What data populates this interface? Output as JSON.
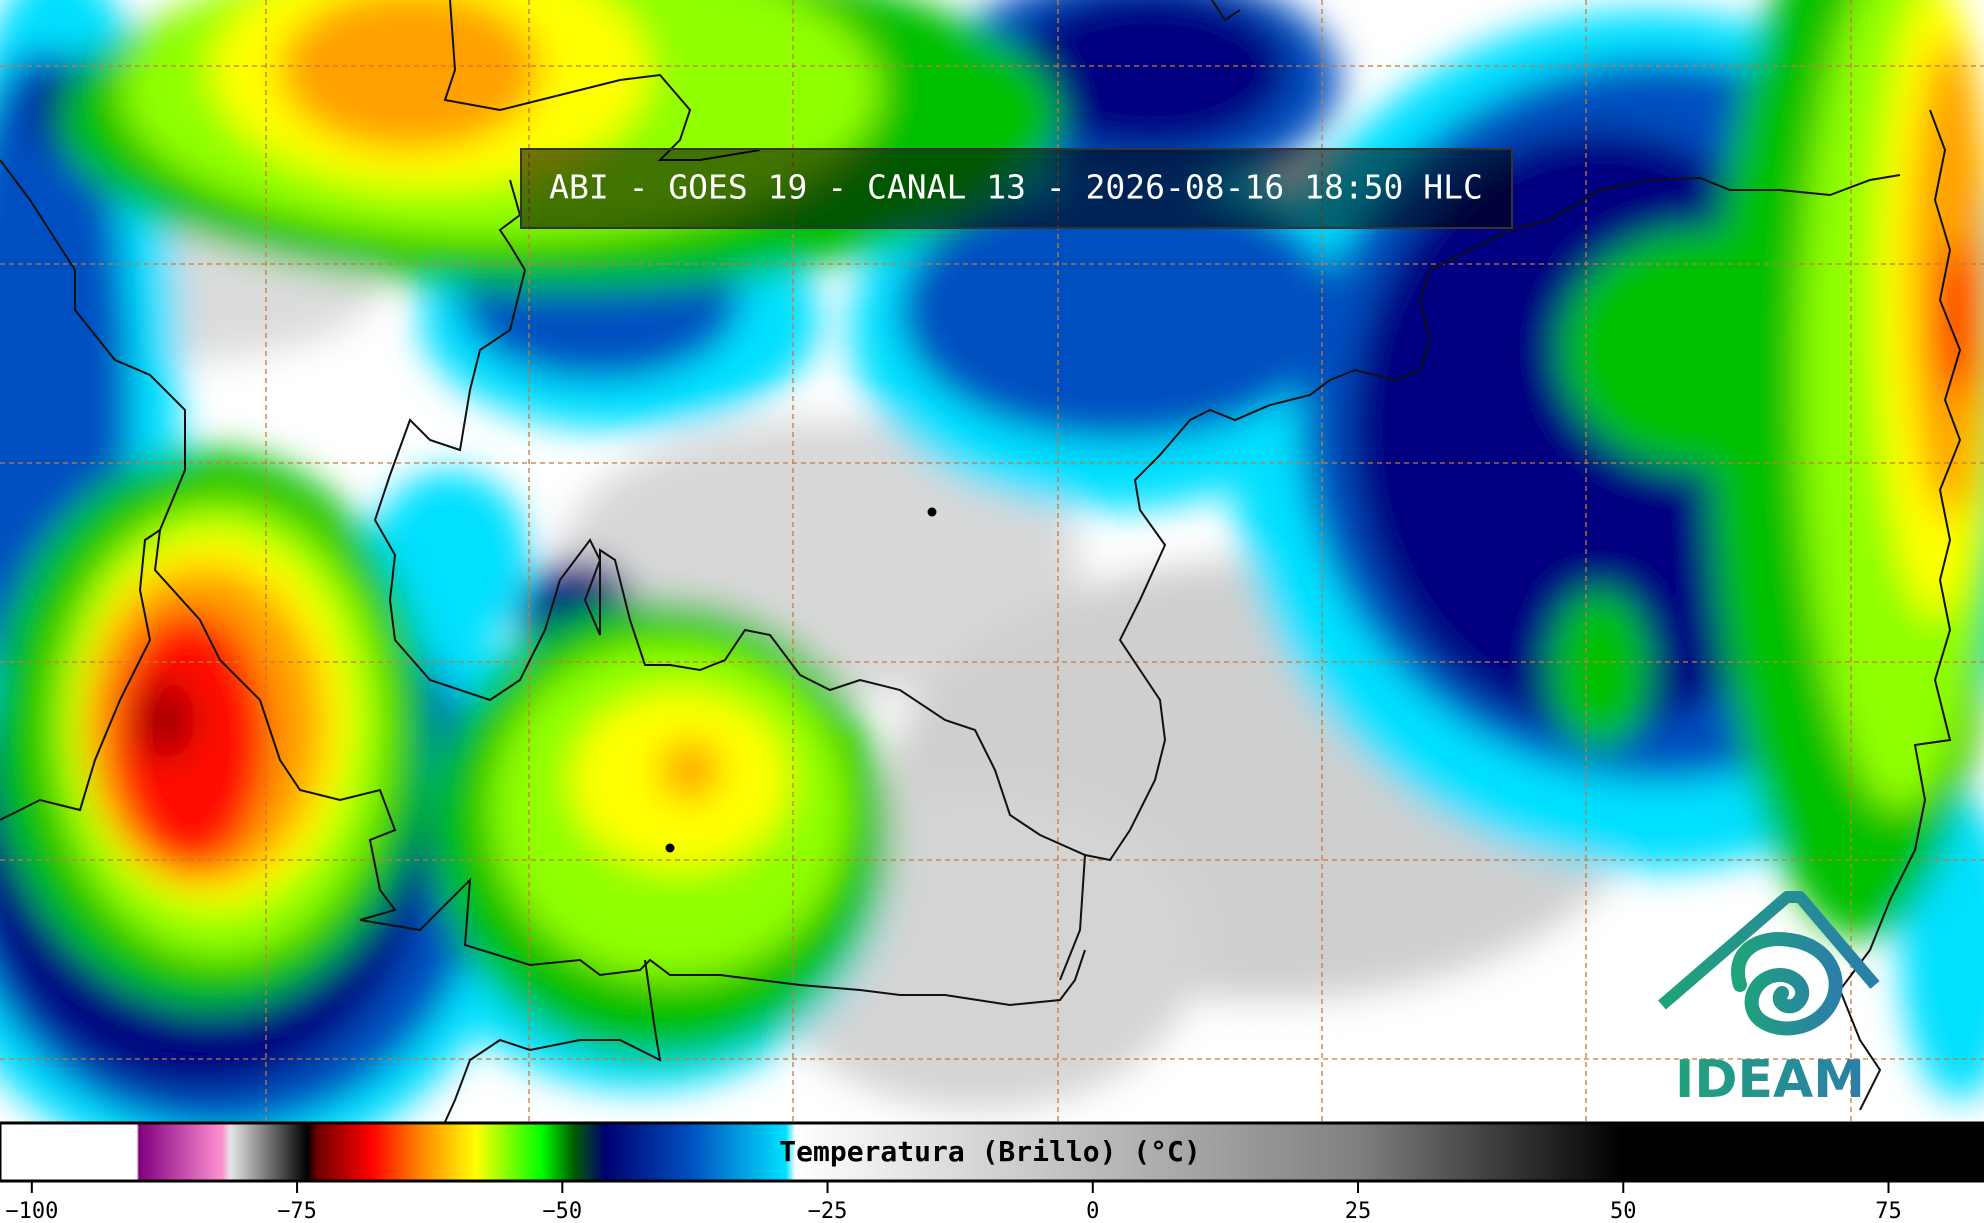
{
  "header": {
    "title": "ABI - GOES 19 - CANAL 13 - 2026-08-16 18:50 HLC"
  },
  "colorbar": {
    "label": "Temperatura (Brillo) (°C)",
    "lim": [
      -103,
      84
    ],
    "ticks": [
      {
        "value": -100,
        "label": "−100"
      },
      {
        "value": -75,
        "label": "−75"
      },
      {
        "value": -50,
        "label": "−50"
      },
      {
        "value": -25,
        "label": "−25"
      },
      0,
      25,
      50,
      75
    ]
  },
  "logo": {
    "text": "IDEAM"
  }
}
